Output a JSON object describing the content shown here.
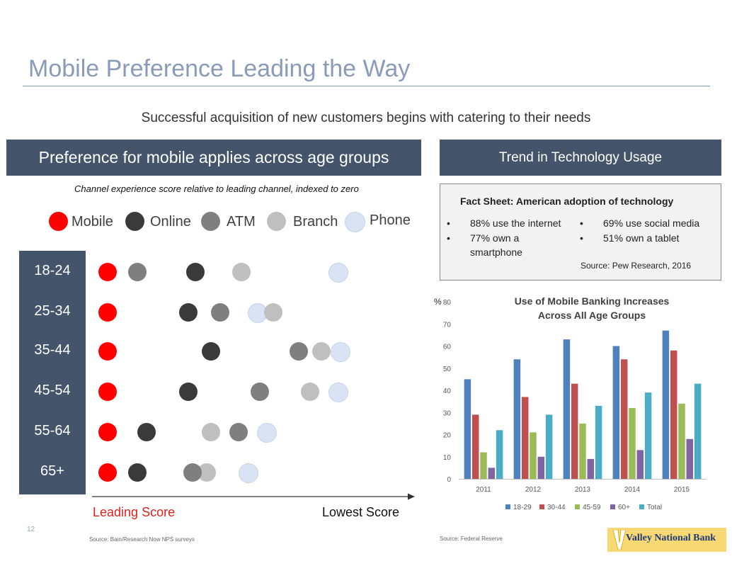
{
  "title": "Mobile Preference Leading the Way",
  "subtitle": "Successful acquisition of new customers begins with catering to their needs",
  "left_panel": {
    "banner": "Preference for mobile applies across age groups",
    "caption": "Channel experience score relative to leading channel, indexed to zero",
    "legend": [
      {
        "label": "Mobile",
        "color": "#ff0000"
      },
      {
        "label": "Online",
        "color": "#3a3a3a"
      },
      {
        "label": "ATM",
        "color": "#7f7f7f"
      },
      {
        "label": "Branch",
        "color": "#bfbfbf"
      },
      {
        "label": "Phone",
        "color": "#dae3f3"
      }
    ],
    "age_groups": [
      "18-24",
      "25-34",
      "35-44",
      "45-54",
      "55-64",
      "65+"
    ],
    "axis_left_label": "Leading Score",
    "axis_right_label": "Lowest Score",
    "source": "Source: Bain/Research Now NPS surveys",
    "page_number": "12"
  },
  "dot_plot_data": {
    "type": "scatter",
    "channels": [
      "Mobile",
      "Online",
      "ATM",
      "Branch",
      "Phone"
    ],
    "scores_by_age": {
      "18-24": {
        "Mobile": 0,
        "Online": 38,
        "ATM": 13,
        "Branch": 58,
        "Phone": 100
      },
      "25-34": {
        "Mobile": 0,
        "Online": 35,
        "ATM": 49,
        "Branch": 72,
        "Phone": 65
      },
      "35-44": {
        "Mobile": 0,
        "Online": 45,
        "ATM": 83,
        "Branch": 93,
        "Phone": 101
      },
      "45-54": {
        "Mobile": 0,
        "Online": 35,
        "ATM": 66,
        "Branch": 88,
        "Phone": 100
      },
      "55-64": {
        "Mobile": 0,
        "Online": 17,
        "ATM": 57,
        "Branch": 45,
        "Phone": 69
      },
      "65+": {
        "Mobile": 0,
        "Online": 13,
        "ATM": 37,
        "Branch": 43,
        "Phone": 61
      }
    }
  },
  "right_panel": {
    "banner": "Trend in Technology Usage",
    "fact_sheet": {
      "title": "Fact Sheet: American adoption of technology",
      "left_items": [
        "88% use the internet",
        "77% own a",
        "smartphone"
      ],
      "right_items": [
        "69% use social media",
        "51% own a tablet"
      ],
      "bullet": "•",
      "source": "Source: Pew Research, 2016"
    },
    "source": "Source: Federal Reserve"
  },
  "chart_data": {
    "type": "bar",
    "title_lines": [
      "Use of Mobile Banking Increases",
      "Across All Age Groups"
    ],
    "ylabel": "%",
    "categories": [
      "2011",
      "2012",
      "2013",
      "2014",
      "2015"
    ],
    "ylim": [
      0,
      80
    ],
    "yticks": [
      "0",
      "10",
      "20",
      "30",
      "40",
      "50",
      "60",
      "70",
      "80"
    ],
    "legend_position": "bottom",
    "series": [
      {
        "name": "18-29",
        "color": "#4f81bd",
        "values": [
          45,
          54,
          63,
          60,
          67
        ]
      },
      {
        "name": "30-44",
        "color": "#c0504d",
        "values": [
          29,
          37,
          43,
          54,
          58
        ]
      },
      {
        "name": "45-59",
        "color": "#9bbb59",
        "values": [
          12,
          21,
          25,
          32,
          34
        ]
      },
      {
        "name": "60+",
        "color": "#8064a2",
        "values": [
          5,
          10,
          9,
          13,
          18
        ]
      },
      {
        "name": "Total",
        "color": "#4bacc6",
        "values": [
          22,
          29,
          33,
          39,
          43
        ]
      }
    ]
  },
  "logo": {
    "text": "Valley National Bank"
  }
}
